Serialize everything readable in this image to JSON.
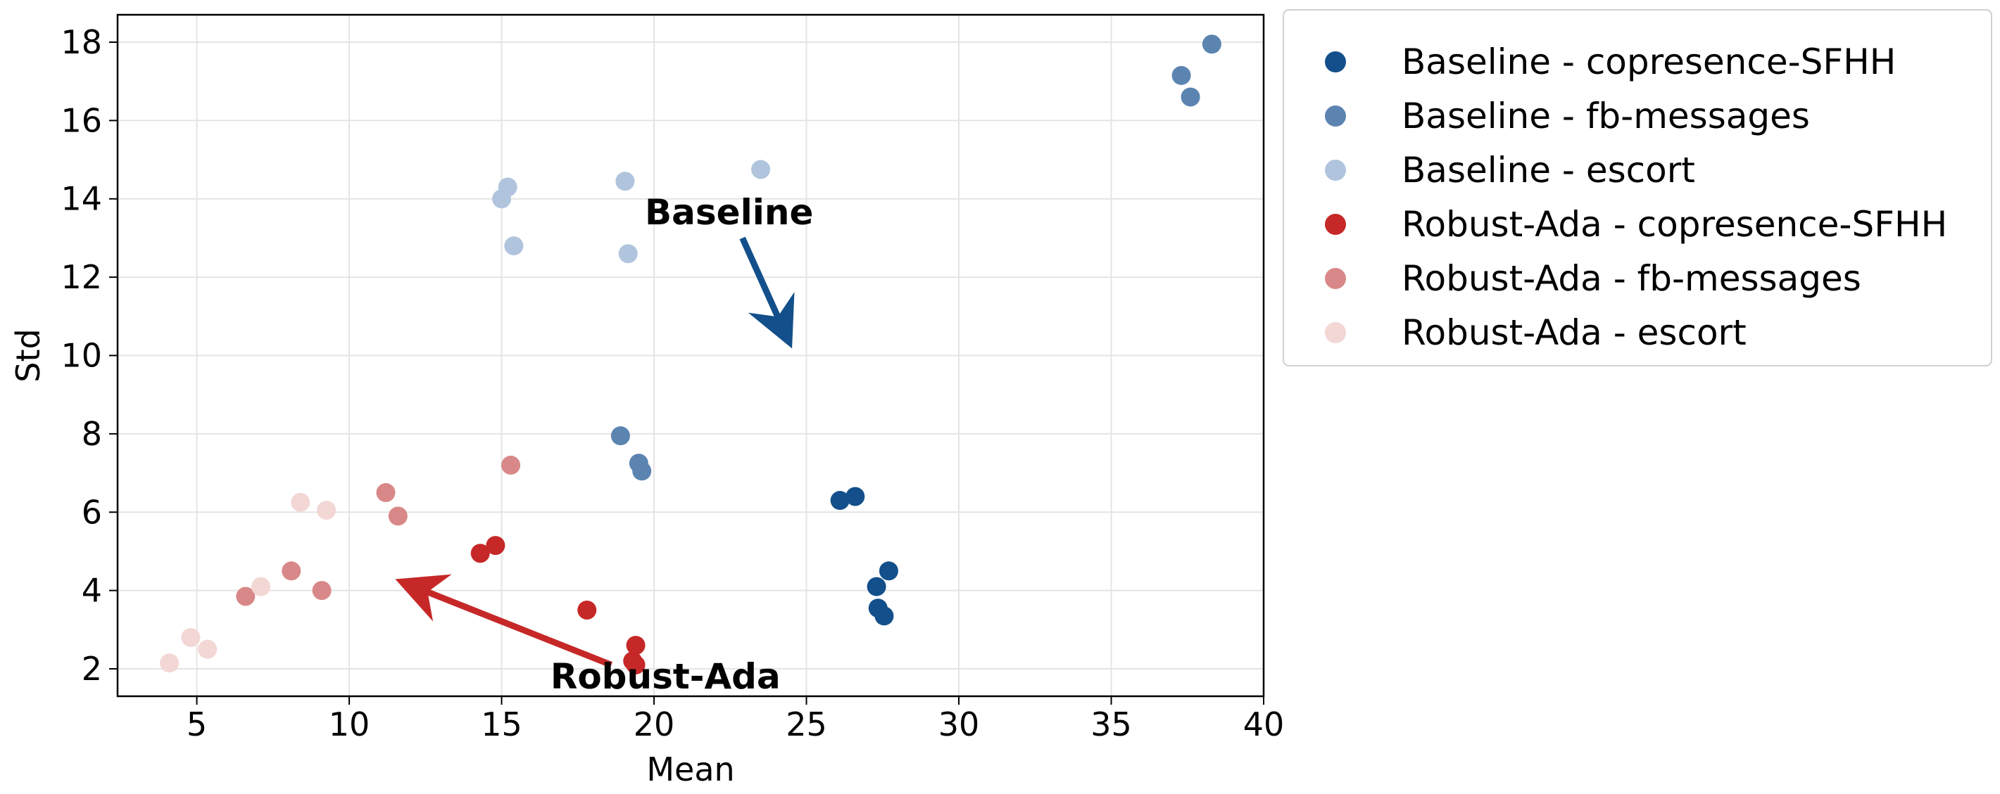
{
  "chart_data": {
    "type": "scatter",
    "xlabel": "Mean",
    "ylabel": "Std",
    "xlim": [
      2.4,
      40.0
    ],
    "ylim": [
      1.3,
      18.7
    ],
    "xticks": [
      5,
      10,
      15,
      20,
      25,
      30,
      35,
      40
    ],
    "yticks": [
      2,
      4,
      6,
      8,
      10,
      12,
      14,
      16,
      18
    ],
    "grid": true,
    "legend_position": "outside-right",
    "series": [
      {
        "name": "Baseline - copresence-SFHH",
        "color": "#134f8a",
        "points": [
          [
            26.1,
            6.3
          ],
          [
            26.6,
            6.4
          ],
          [
            27.7,
            4.5
          ],
          [
            27.3,
            4.1
          ],
          [
            27.35,
            3.55
          ],
          [
            27.55,
            3.35
          ]
        ]
      },
      {
        "name": "Baseline - fb-messages",
        "color": "#5b84b1",
        "points": [
          [
            38.3,
            17.95
          ],
          [
            37.3,
            17.15
          ],
          [
            37.6,
            16.6
          ],
          [
            18.9,
            7.95
          ],
          [
            19.5,
            7.25
          ],
          [
            19.6,
            7.05
          ]
        ]
      },
      {
        "name": "Baseline - escort",
        "color": "#b0c4dd",
        "points": [
          [
            23.5,
            14.75
          ],
          [
            19.05,
            14.45
          ],
          [
            15.2,
            14.3
          ],
          [
            15.0,
            14.0
          ],
          [
            15.4,
            12.8
          ],
          [
            19.15,
            12.6
          ]
        ]
      },
      {
        "name": "Robust-Ada - copresence-SFHH",
        "color": "#c62828",
        "points": [
          [
            14.8,
            5.15
          ],
          [
            14.3,
            4.95
          ],
          [
            17.8,
            3.5
          ],
          [
            19.4,
            2.6
          ],
          [
            19.3,
            2.2
          ],
          [
            19.4,
            2.1
          ]
        ]
      },
      {
        "name": "Robust-Ada - fb-messages",
        "color": "#d88888",
        "points": [
          [
            15.3,
            7.2
          ],
          [
            11.2,
            6.5
          ],
          [
            11.6,
            5.9
          ],
          [
            8.1,
            4.5
          ],
          [
            9.1,
            4.0
          ],
          [
            6.6,
            3.85
          ]
        ]
      },
      {
        "name": "Robust-Ada - escort",
        "color": "#f2d7d5",
        "points": [
          [
            8.4,
            6.25
          ],
          [
            9.25,
            6.05
          ],
          [
            7.1,
            4.1
          ],
          [
            4.8,
            2.8
          ],
          [
            5.35,
            2.5
          ],
          [
            4.1,
            2.15
          ]
        ]
      }
    ],
    "annotations": [
      {
        "text": "Baseline",
        "color": "#134f8a",
        "text_at": [
          19.7,
          13.35
        ],
        "arrow_from": [
          22.9,
          13.0
        ],
        "arrow_to": [
          24.4,
          10.4
        ]
      },
      {
        "text": "Robust-Ada",
        "color": "#c62828",
        "text_at": [
          16.6,
          1.5
        ],
        "arrow_from": [
          18.6,
          2.1
        ],
        "arrow_to": [
          11.8,
          4.2
        ]
      }
    ]
  }
}
